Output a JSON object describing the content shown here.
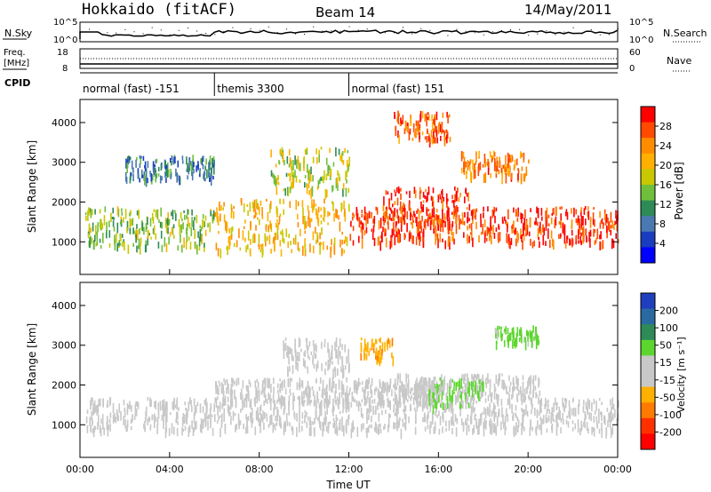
{
  "header": {
    "station": "Hokkaido (fitACF)",
    "beam": "Beam 14",
    "date": "14/May/2011"
  },
  "status_panels": {
    "left_labels": {
      "nsky": "N.Sky",
      "freq": "Freq.",
      "freq_unit": "[MHz]",
      "cpid": "CPID"
    },
    "right_labels": {
      "nsearch": "N.Search",
      "nave": "Nave"
    },
    "nsky_ticks": [
      "10^5",
      "10^0"
    ],
    "freq_ticks": [
      "18",
      "8"
    ],
    "nave_ticks": [
      "60",
      "0"
    ]
  },
  "cpid_segments": [
    {
      "label": "normal (fast) -151",
      "start_hour": 0,
      "end_hour": 6
    },
    {
      "label": "themis 3300",
      "start_hour": 6,
      "end_hour": 12
    },
    {
      "label": "normal (fast) 151",
      "start_hour": 12,
      "end_hour": 24
    }
  ],
  "colorbars": {
    "power": {
      "label": "Power [dB]",
      "ticks": [
        "28",
        "24",
        "20",
        "16",
        "12",
        "8",
        "4"
      ],
      "colors": [
        "#ff0000",
        "#ff4a00",
        "#ff8c00",
        "#ffb000",
        "#c8c800",
        "#6fbf3a",
        "#2e8b57",
        "#4a78b0",
        "#1a3cbf",
        "#0000ff"
      ]
    },
    "velocity": {
      "label": "Velocity [m s⁻¹]",
      "ticks": [
        "200",
        "100",
        "50",
        "15",
        "-15",
        "-50",
        "-100",
        "-200"
      ],
      "colors": [
        "#1f3fbf",
        "#2a6aa0",
        "#2e8b57",
        "#5cd62e",
        "#c8c8c8",
        "#c8c8c8",
        "#ffb000",
        "#ff7a00",
        "#ff3000",
        "#ff0000"
      ]
    }
  },
  "axes": {
    "ylabel": "Slant Range [km]",
    "yticks": [
      "4000",
      "3000",
      "2000",
      "1000"
    ],
    "xticks": [
      "00:00",
      "04:00",
      "08:00",
      "12:00",
      "16:00",
      "20:00",
      "00:00"
    ],
    "xlabel": "Time UT"
  },
  "chart_data": [
    {
      "type": "heatmap",
      "name_hint": "power",
      "x_range_hours": [
        0,
        24
      ],
      "y_range_km": [
        180,
        4580
      ],
      "bands": [
        {
          "t0": 0.2,
          "t1": 6.0,
          "r0": 900,
          "r1": 1900,
          "val": 14
        },
        {
          "t0": 6.0,
          "t1": 12.0,
          "r0": 800,
          "r1": 2100,
          "val": 20
        },
        {
          "t0": 12.0,
          "t1": 24.0,
          "r0": 1000,
          "r1": 1900,
          "val": 28
        },
        {
          "t0": 13.5,
          "t1": 17.5,
          "r0": 1500,
          "r1": 2400,
          "val": 28
        },
        {
          "t0": 14.0,
          "t1": 16.5,
          "r0": 3600,
          "r1": 4300,
          "val": 26
        },
        {
          "t0": 17.0,
          "t1": 20.0,
          "r0": 2700,
          "r1": 3300,
          "val": 24
        },
        {
          "t0": 8.5,
          "t1": 12.0,
          "r0": 2300,
          "r1": 3400,
          "val": 16
        },
        {
          "t0": 2.0,
          "t1": 6.0,
          "r0": 2600,
          "r1": 3200,
          "val": 8
        }
      ]
    },
    {
      "type": "heatmap",
      "name_hint": "velocity",
      "x_range_hours": [
        0,
        24
      ],
      "y_range_km": [
        180,
        4580
      ],
      "bands": [
        {
          "t0": 0.2,
          "t1": 24.0,
          "r0": 900,
          "r1": 1700,
          "val": 0
        },
        {
          "t0": 6.0,
          "t1": 16.0,
          "r0": 1600,
          "r1": 2200,
          "val": 0
        },
        {
          "t0": 14.0,
          "t1": 20.5,
          "r0": 1700,
          "r1": 2300,
          "val": 0
        },
        {
          "t0": 18.5,
          "t1": 20.5,
          "r0": 3100,
          "r1": 3500,
          "val": 40
        },
        {
          "t0": 15.5,
          "t1": 18.0,
          "r0": 1500,
          "r1": 2200,
          "val": 40
        },
        {
          "t0": 12.5,
          "t1": 14.0,
          "r0": 2700,
          "r1": 3200,
          "val": -60
        },
        {
          "t0": 9.0,
          "t1": 12.0,
          "r0": 2400,
          "r1": 3200,
          "val": 0
        }
      ]
    }
  ]
}
